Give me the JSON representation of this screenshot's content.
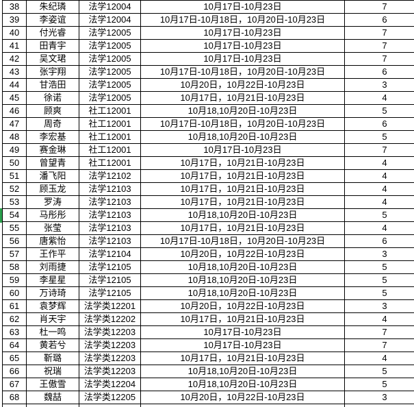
{
  "sheet": {
    "columns": [
      "row-number",
      "student-name",
      "class-name",
      "dates",
      "day-count"
    ],
    "rows": [
      {
        "num": "38",
        "name": "朱纪璘",
        "class": "法学12004",
        "dates": "10月17日-10月23日",
        "days": "7"
      },
      {
        "num": "39",
        "name": "李姿谊",
        "class": "法学12004",
        "dates": "10月17日-10月18日，10月20日-10月23日",
        "days": "6"
      },
      {
        "num": "40",
        "name": "付光睿",
        "class": "法学12005",
        "dates": "10月17日-10月23日",
        "days": "7"
      },
      {
        "num": "41",
        "name": "田青宇",
        "class": "法学12005",
        "dates": "10月17日-10月23日",
        "days": "7"
      },
      {
        "num": "42",
        "name": "吴文珺",
        "class": "法学12005",
        "dates": "10月17日-10月23日",
        "days": "7"
      },
      {
        "num": "43",
        "name": "张宇翔",
        "class": "法学12005",
        "dates": "10月17日-10月18日，10月20日-10月23日",
        "days": "6"
      },
      {
        "num": "44",
        "name": "甘浩田",
        "class": "法学12005",
        "dates": "10月20日，10月22日-10月23日",
        "days": "3"
      },
      {
        "num": "45",
        "name": "徐诺",
        "class": "法学12005",
        "dates": "10月17日，10月21日-10月23日",
        "days": "4"
      },
      {
        "num": "46",
        "name": "顾爽",
        "class": "社工12001",
        "dates": "10月18,10月20日-10月23日",
        "days": "5"
      },
      {
        "num": "47",
        "name": "周奇",
        "class": "社工12001",
        "dates": "10月17日-10月18日，10月20日-10月23日",
        "days": "6"
      },
      {
        "num": "48",
        "name": "李宏基",
        "class": "社工12001",
        "dates": "10月18,10月20日-10月23日",
        "days": "5"
      },
      {
        "num": "49",
        "name": "赛金琳",
        "class": "社工12001",
        "dates": "10月17日-10月23日",
        "days": "7"
      },
      {
        "num": "50",
        "name": "曾望青",
        "class": "社工12001",
        "dates": "10月17日，10月21日-10月23日",
        "days": "4"
      },
      {
        "num": "51",
        "name": "潘飞阳",
        "class": "法学12102",
        "dates": "10月17日，10月21日-10月23日",
        "days": "4"
      },
      {
        "num": "52",
        "name": "顾玉龙",
        "class": "法学12103",
        "dates": "10月17日，10月21日-10月23日",
        "days": "4"
      },
      {
        "num": "53",
        "name": "罗涛",
        "class": "法学12103",
        "dates": "10月17日，10月21日-10月23日",
        "days": "4"
      },
      {
        "num": "54",
        "name": "马彤彤",
        "class": "法学12103",
        "dates": "10月18,10月20日-10月23日",
        "days": "5"
      },
      {
        "num": "55",
        "name": "张莹",
        "class": "法学12103",
        "dates": "10月17日，10月21日-10月23日",
        "days": "4"
      },
      {
        "num": "56",
        "name": "唐紫怡",
        "class": "法学12103",
        "dates": "10月17日-10月18日，10月20日-10月23日",
        "days": "6"
      },
      {
        "num": "57",
        "name": "王作平",
        "class": "法学12104",
        "dates": "10月20日，10月22日-10月23日",
        "days": "3"
      },
      {
        "num": "58",
        "name": "刘雨捷",
        "class": "法学12105",
        "dates": "10月18,10月20日-10月23日",
        "days": "5"
      },
      {
        "num": "59",
        "name": "李星星",
        "class": "法学12105",
        "dates": "10月18,10月20日-10月23日",
        "days": "5"
      },
      {
        "num": "60",
        "name": "万诗琦",
        "class": "法学12105",
        "dates": "10月18,10月20日-10月23日",
        "days": "5"
      },
      {
        "num": "61",
        "name": "袁梦辉",
        "class": "法学类12201",
        "dates": "10月20日，10月22日-10月23日",
        "days": "3"
      },
      {
        "num": "62",
        "name": "肖天宇",
        "class": "法学类12202",
        "dates": "10月17日，10月21日-10月23日",
        "days": "4"
      },
      {
        "num": "63",
        "name": "杜一鸣",
        "class": "法学类12203",
        "dates": "10月17日-10月23日",
        "days": "7"
      },
      {
        "num": "64",
        "name": "黄若兮",
        "class": "法学类12203",
        "dates": "10月17日-10月23日",
        "days": "7"
      },
      {
        "num": "65",
        "name": "靳璐",
        "class": "法学类12203",
        "dates": "10月17日，10月21日-10月23日",
        "days": "4"
      },
      {
        "num": "66",
        "name": "祝瑞",
        "class": "法学类12203",
        "dates": "10月18,10月20日-10月23日",
        "days": "5"
      },
      {
        "num": "67",
        "name": "王傲雪",
        "class": "法学类12204",
        "dates": "10月18,10月20日-10月23日",
        "days": "5"
      },
      {
        "num": "68",
        "name": "魏喆",
        "class": "法学类12205",
        "dates": "10月20日，10月22日-10月23日",
        "days": "3"
      }
    ],
    "active_row_marker": {
      "row": "54",
      "color": "#2ca04e"
    }
  },
  "colors": {
    "background": "#ffffff",
    "grid_border": "#000000",
    "text": "#000000"
  }
}
